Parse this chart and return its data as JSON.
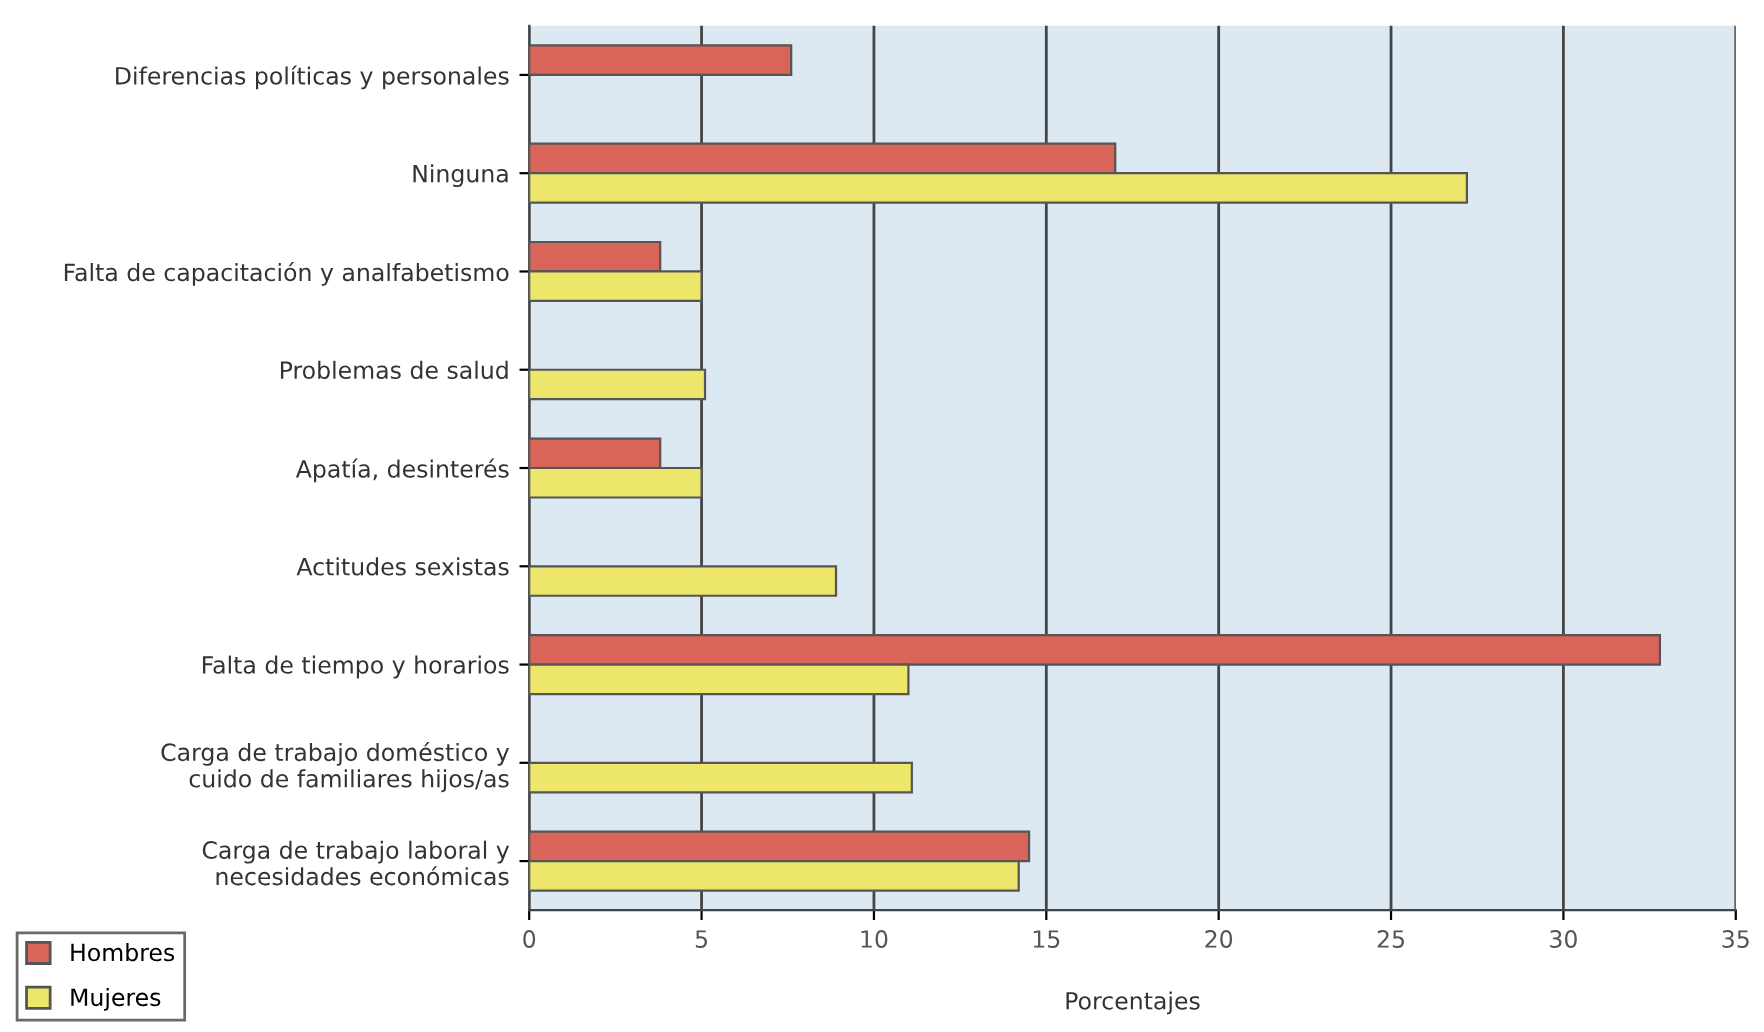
{
  "chart_data": {
    "type": "bar",
    "orientation": "horizontal",
    "xlabel": "Porcentajes",
    "categories": [
      "Diferencias políticas y personales",
      "Ninguna",
      "Falta de capacitación y analfabetismo",
      "Problemas de salud",
      "Apatía, desinterés",
      "Actitudes sexistas",
      "Falta de tiempo y horarios",
      "Carga de trabajo doméstico y\ncuido de familiares hijos/as",
      "Carga de trabajo laboral y\nnecesidades económicas"
    ],
    "series": [
      {
        "name": "Hombres",
        "color": "#d9645a",
        "values": [
          7.6,
          17.0,
          3.8,
          null,
          3.8,
          null,
          32.8,
          null,
          14.5
        ]
      },
      {
        "name": "Mujeres",
        "color": "#ece66a",
        "values": [
          null,
          27.2,
          5.0,
          5.1,
          5.0,
          8.9,
          11.0,
          11.1,
          14.2
        ]
      }
    ],
    "xlim": [
      0,
      35
    ],
    "xticks": [
      0,
      5,
      10,
      15,
      20,
      25,
      30,
      35
    ],
    "grid": "x",
    "legend": "bottom left"
  }
}
